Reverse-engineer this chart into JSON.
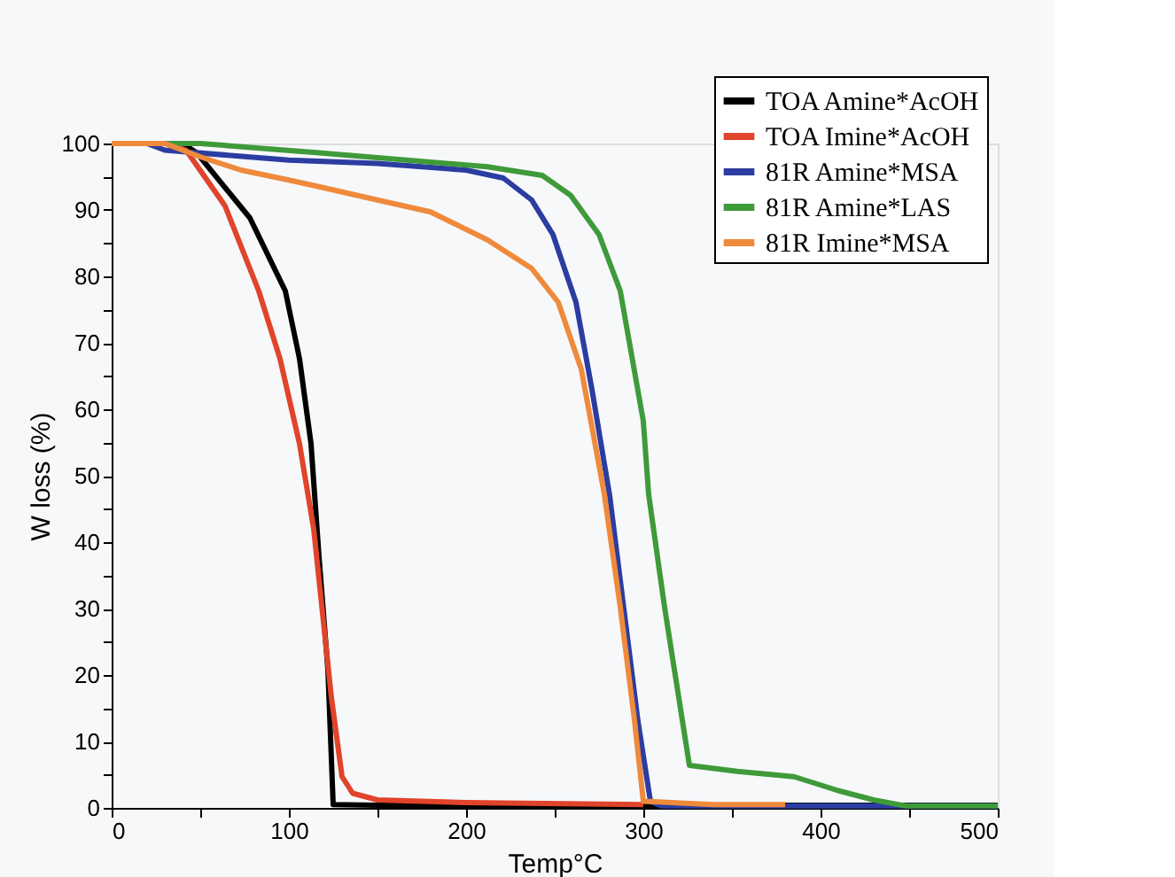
{
  "chart_data": {
    "type": "line",
    "xlabel": "Temp°C",
    "ylabel": "W loss (%)",
    "xlim": [
      0,
      500
    ],
    "ylim": [
      0,
      100
    ],
    "xticks": [
      0,
      {
        "value": 50,
        "label": null
      },
      100,
      {
        "value": 150,
        "label": null
      },
      200,
      {
        "value": 250,
        "label": null
      },
      300,
      {
        "value": 350,
        "label": null
      },
      400,
      {
        "value": 450,
        "label": null
      },
      500
    ],
    "yticks": [
      0,
      {
        "value": 5,
        "label": null
      },
      10,
      {
        "value": 15,
        "label": null
      },
      20,
      {
        "value": 25,
        "label": null
      },
      30,
      {
        "value": 35,
        "label": null
      },
      40,
      {
        "value": 45,
        "label": null
      },
      50,
      {
        "value": 55,
        "label": null
      },
      60,
      {
        "value": 65,
        "label": null
      },
      70,
      {
        "value": 75,
        "label": null
      },
      80,
      {
        "value": 85,
        "label": null
      },
      90,
      {
        "value": 95,
        "label": null
      },
      100
    ],
    "grid": false,
    "legend": "top right",
    "series": [
      {
        "name": "TOA Amine*AcOH",
        "color": "#000000",
        "x": [
          0,
          40,
          48,
          78,
          98,
          106,
          112.5,
          117,
          122,
          125,
          150,
          200,
          300,
          400,
          500
        ],
        "values": [
          100,
          100,
          98.6,
          88.8,
          77.8,
          67.6,
          54.8,
          37.8,
          20.9,
          0.5,
          0.4,
          0.4,
          0.4,
          0.4,
          0.4
        ]
      },
      {
        "name": "TOA Imine*AcOH",
        "color": "#e0442a",
        "x": [
          0,
          30,
          42,
          64,
          83,
          95,
          106,
          114,
          119,
          124,
          130,
          136,
          150,
          200,
          300
        ],
        "values": [
          100,
          100,
          99,
          90.6,
          77.8,
          67.6,
          54.8,
          42,
          29.3,
          16.6,
          4.7,
          2.2,
          1.2,
          0.8,
          0.5
        ]
      },
      {
        "name": "81R Amine*MSA",
        "color": "#2b3da0",
        "x": [
          0,
          20,
          30,
          100,
          150,
          200,
          221,
          237,
          249,
          262,
          271,
          281,
          289,
          297,
          304,
          310,
          400,
          500
        ],
        "values": [
          100,
          100,
          99,
          97.5,
          97,
          96,
          94.8,
          91.5,
          86.3,
          76.1,
          63,
          47,
          30,
          13,
          1,
          0.3,
          0.3,
          0.3
        ]
      },
      {
        "name": "81R Amine*LAS",
        "color": "#3f9a3a",
        "x": [
          0,
          50,
          117,
          212,
          243,
          259,
          275,
          287,
          300,
          303,
          312,
          322,
          326,
          353,
          385,
          410,
          430,
          448,
          500
        ],
        "values": [
          100,
          100,
          98.6,
          96.5,
          95.2,
          92.2,
          86.3,
          77.8,
          58.2,
          47.2,
          30.2,
          13.2,
          6.4,
          5.5,
          4.7,
          2.6,
          1.2,
          0.3,
          0.3
        ]
      },
      {
        "name": "81R Imine*MSA",
        "color": "#ef8a3c",
        "x": [
          0,
          30,
          50,
          73,
          100,
          117,
          150,
          180,
          212,
          237,
          252,
          265,
          278,
          287,
          295,
          300,
          340,
          380
        ],
        "values": [
          100,
          100,
          98,
          96,
          94.5,
          93.5,
          91.5,
          89.7,
          85.5,
          81.2,
          76.1,
          66,
          47.2,
          30.2,
          13.2,
          1,
          0.5,
          0.5
        ]
      }
    ]
  }
}
